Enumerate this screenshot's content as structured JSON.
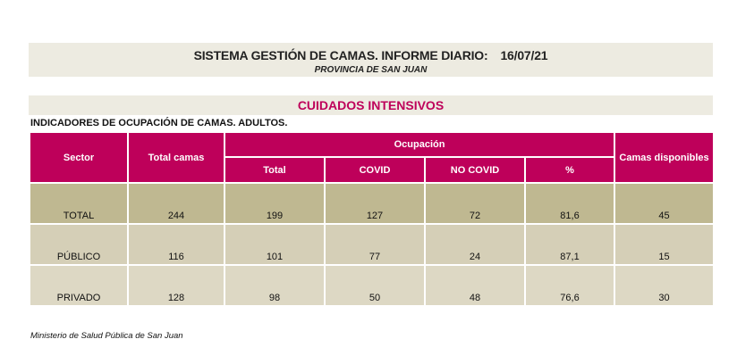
{
  "header": {
    "title": "SISTEMA GESTIÓN DE CAMAS. INFORME DIARIO:",
    "date": "16/07/21",
    "subtitle": "PROVINCIA DE SAN JUAN"
  },
  "section_title": "CUIDADOS INTENSIVOS",
  "indicator_title": "INDICADORES DE OCUPACIÓN DE CAMAS. ADULTOS.",
  "table": {
    "headers": {
      "sector": "Sector",
      "total_camas": "Total camas",
      "ocupacion": "Ocupación",
      "total": "Total",
      "covid": "COVID",
      "no_covid": "NO COVID",
      "pct": "%",
      "disponibles": "Camas disponibles"
    },
    "rows": [
      [
        "TOTAL",
        "244",
        "199",
        "127",
        "72",
        "81,6",
        "45"
      ],
      [
        "PÚBLICO",
        "116",
        "101",
        "77",
        "24",
        "87,1",
        "15"
      ],
      [
        "PRIVADO",
        "128",
        "98",
        "50",
        "48",
        "76,6",
        "30"
      ]
    ]
  },
  "footer": "Ministerio de Salud Pública de San Juan",
  "colors": {
    "accent": "#BE005A",
    "total_row": "#BFB891",
    "row1": "#D5CFB7",
    "row2": "#DDD8C4"
  }
}
